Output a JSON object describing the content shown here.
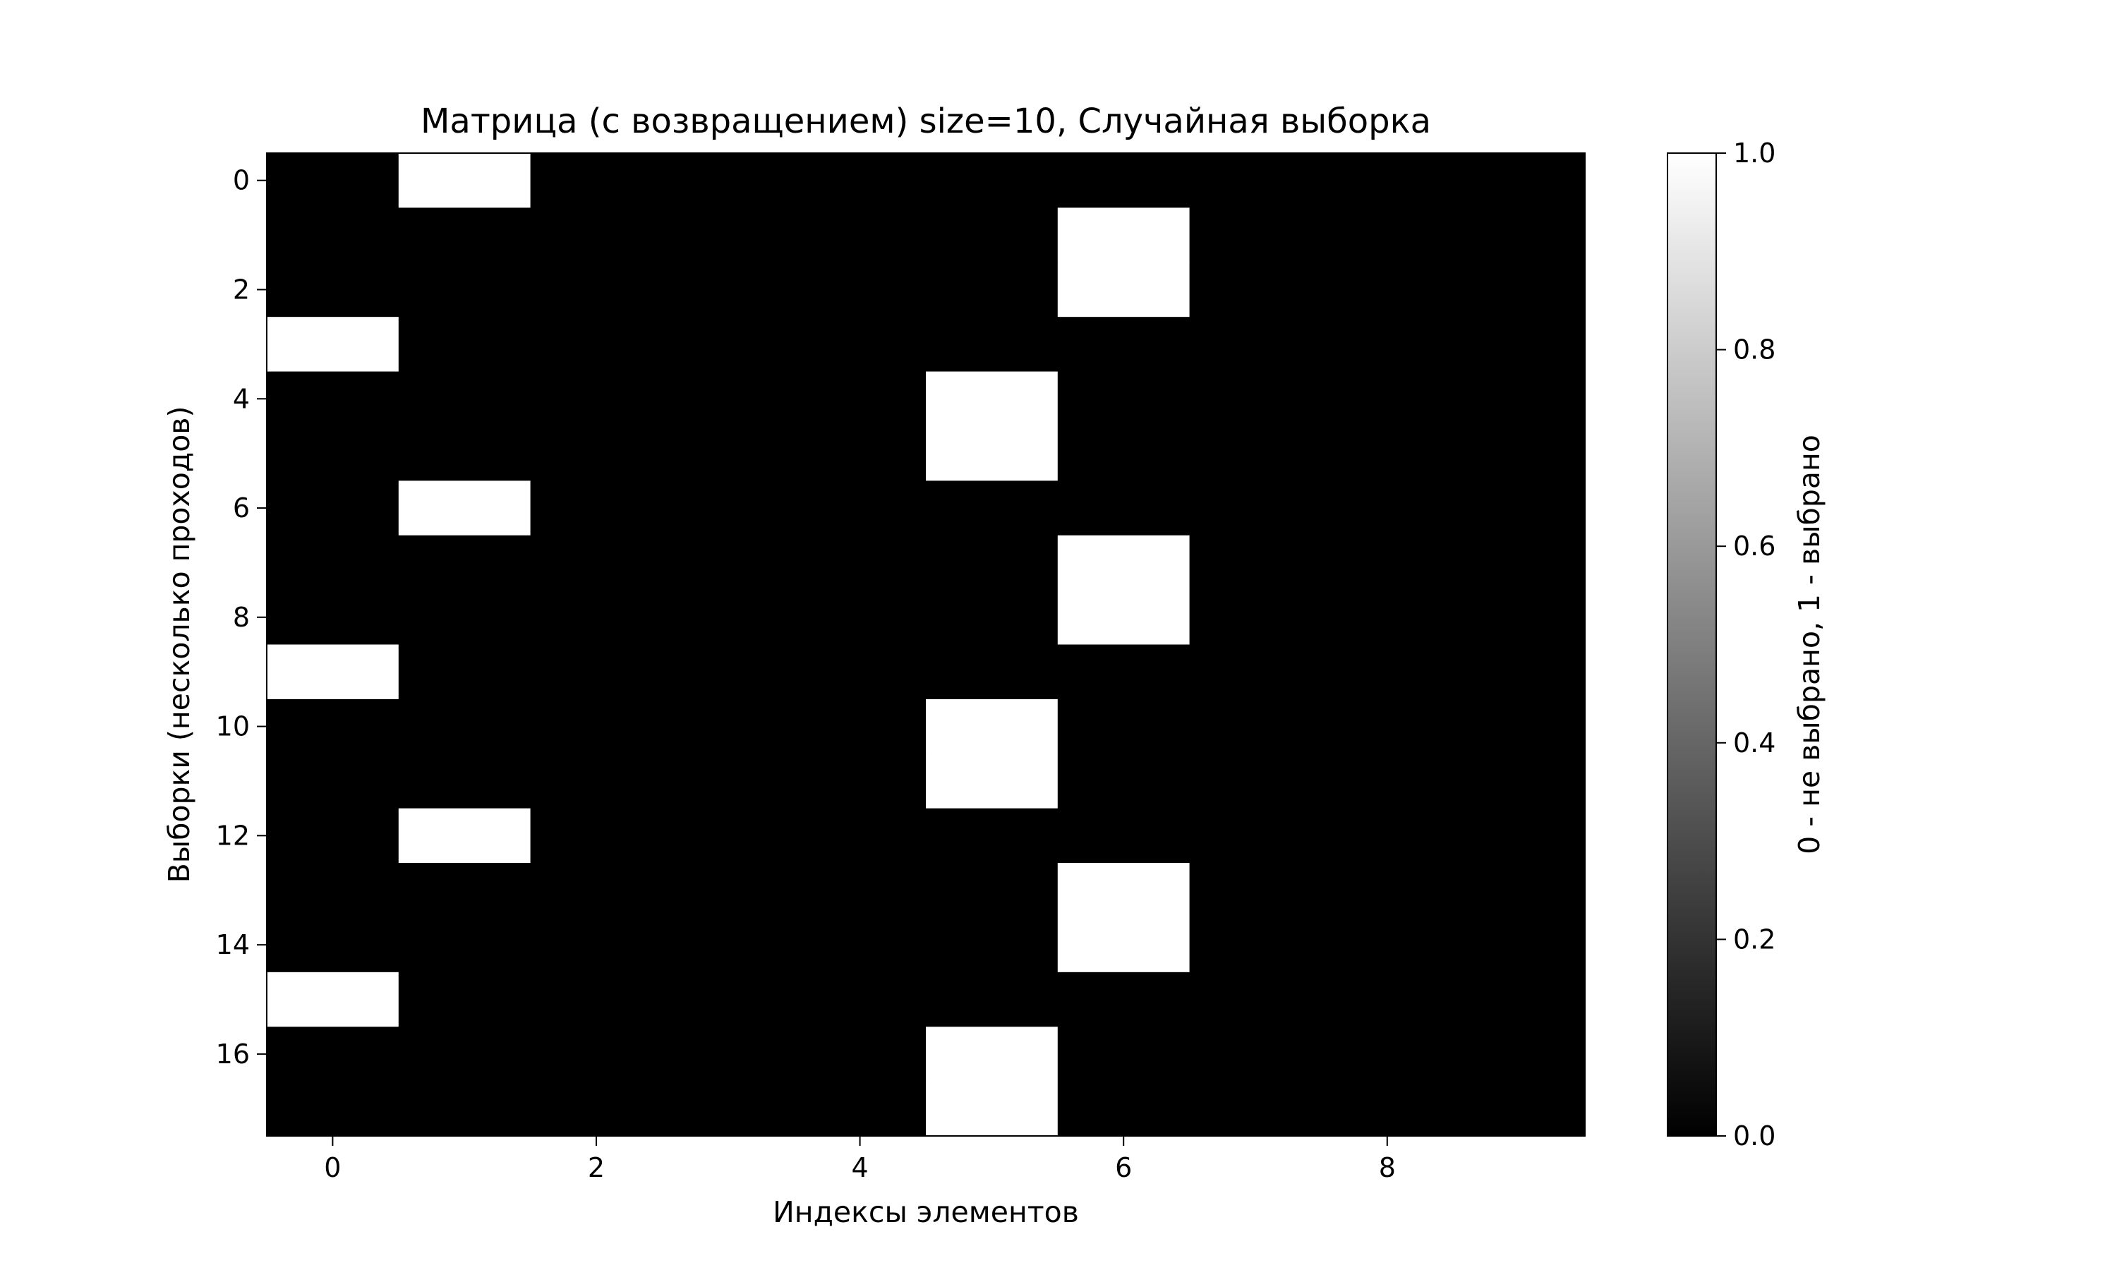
{
  "chart_data": {
    "type": "heatmap",
    "title": "Матрица (с возвращением) size=10, Случайная выборка",
    "xlabel": "Индексы элементов",
    "ylabel": "Выборки (несколько проходов)",
    "colorbar_label": "0 - не выбрано, 1 - выбрано",
    "colormap": "gray",
    "vmin": 0,
    "vmax": 1,
    "x": [
      0,
      1,
      2,
      3,
      4,
      5,
      6,
      7,
      8,
      9
    ],
    "y": [
      0,
      1,
      2,
      3,
      4,
      5,
      6,
      7,
      8,
      9,
      10,
      11,
      12,
      13,
      14,
      15,
      16,
      17
    ],
    "xlim": [
      -0.5,
      9.5
    ],
    "ylim": [
      17.5,
      -0.5
    ],
    "x_ticks": [
      0,
      2,
      4,
      6,
      8
    ],
    "x_tick_labels": [
      "0",
      "2",
      "4",
      "6",
      "8"
    ],
    "y_ticks": [
      0,
      2,
      4,
      6,
      8,
      10,
      12,
      14,
      16
    ],
    "y_tick_labels": [
      "0",
      "2",
      "4",
      "6",
      "8",
      "10",
      "12",
      "14",
      "16"
    ],
    "colorbar_ticks": [
      0.0,
      0.2,
      0.4,
      0.6,
      0.8,
      1.0
    ],
    "colorbar_tick_labels": [
      "0.0",
      "0.2",
      "0.4",
      "0.6",
      "0.8",
      "1.0"
    ],
    "grid": false,
    "values": [
      [
        0,
        1,
        0,
        0,
        0,
        0,
        0,
        0,
        0,
        0
      ],
      [
        0,
        0,
        0,
        0,
        0,
        0,
        1,
        0,
        0,
        0
      ],
      [
        0,
        0,
        0,
        0,
        0,
        0,
        1,
        0,
        0,
        0
      ],
      [
        1,
        0,
        0,
        0,
        0,
        0,
        0,
        0,
        0,
        0
      ],
      [
        0,
        0,
        0,
        0,
        0,
        1,
        0,
        0,
        0,
        0
      ],
      [
        0,
        0,
        0,
        0,
        0,
        1,
        0,
        0,
        0,
        0
      ],
      [
        0,
        1,
        0,
        0,
        0,
        0,
        0,
        0,
        0,
        0
      ],
      [
        0,
        0,
        0,
        0,
        0,
        0,
        1,
        0,
        0,
        0
      ],
      [
        0,
        0,
        0,
        0,
        0,
        0,
        1,
        0,
        0,
        0
      ],
      [
        1,
        0,
        0,
        0,
        0,
        0,
        0,
        0,
        0,
        0
      ],
      [
        0,
        0,
        0,
        0,
        0,
        1,
        0,
        0,
        0,
        0
      ],
      [
        0,
        0,
        0,
        0,
        0,
        1,
        0,
        0,
        0,
        0
      ],
      [
        0,
        1,
        0,
        0,
        0,
        0,
        0,
        0,
        0,
        0
      ],
      [
        0,
        0,
        0,
        0,
        0,
        0,
        1,
        0,
        0,
        0
      ],
      [
        0,
        0,
        0,
        0,
        0,
        0,
        1,
        0,
        0,
        0
      ],
      [
        1,
        0,
        0,
        0,
        0,
        0,
        0,
        0,
        0,
        0
      ],
      [
        0,
        0,
        0,
        0,
        0,
        1,
        0,
        0,
        0,
        0
      ],
      [
        0,
        0,
        0,
        0,
        0,
        1,
        0,
        0,
        0,
        0
      ]
    ]
  }
}
